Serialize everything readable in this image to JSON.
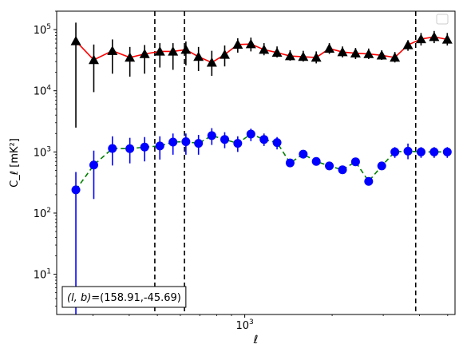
{
  "chart_data": {
    "type": "scatter",
    "title": "",
    "xlabel": "ℓ",
    "ylabel": "C_ℓ  [mK²]",
    "xscale": "log",
    "yscale": "log",
    "xlim": [
      225,
      5300
    ],
    "ylim": [
      2.2,
      200000
    ],
    "grid": false,
    "legend": {
      "placement": "top-right",
      "entries": []
    },
    "annotation": {
      "prefix": "(l, b)",
      "text": "=(158.91,-45.69)"
    },
    "x_ticks": [
      {
        "value": 1000,
        "base": "10",
        "exp": "3"
      }
    ],
    "y_ticks": [
      {
        "value": 10,
        "base": "10",
        "exp": "1"
      },
      {
        "value": 100,
        "base": "10",
        "exp": "2"
      },
      {
        "value": 1000,
        "base": "10",
        "exp": "3"
      },
      {
        "value": 10000,
        "base": "10",
        "exp": "4"
      },
      {
        "value": 100000,
        "base": "10",
        "exp": "5"
      }
    ],
    "vlines": [
      490,
      620,
      3880
    ],
    "series": [
      {
        "color": "#000000",
        "line_color": "#ff0000",
        "line_style": "solid",
        "marker": "triangle",
        "x": [
          262,
          302,
          350,
          402,
          452,
          510,
          566,
          627,
          693,
          770,
          853,
          946,
          1050,
          1165,
          1292,
          1433,
          1590,
          1763,
          1956,
          2171,
          2408,
          2672,
          2964,
          3289,
          3649,
          4048,
          4492,
          4984
        ],
        "y": [
          65000,
          32000,
          45000,
          35000,
          40000,
          44000,
          44000,
          47000,
          36000,
          29000,
          39000,
          57000,
          58000,
          47000,
          42000,
          37000,
          36000,
          35000,
          49000,
          43000,
          41000,
          40000,
          38000,
          35000,
          56000,
          70000,
          76000,
          69000
        ],
        "yerr_low": [
          2500,
          9500,
          19000,
          17000,
          19000,
          24000,
          22000,
          26000,
          21000,
          17500,
          25000,
          42000,
          44000,
          38000,
          35000,
          31000,
          30000,
          28000,
          40000,
          35000,
          33000,
          33000,
          32000,
          29000,
          45000,
          55000,
          60000,
          55000
        ],
        "yerr_high": [
          130000,
          57000,
          69000,
          52000,
          56000,
          60000,
          60000,
          64000,
          52000,
          45000,
          55000,
          72000,
          74000,
          60000,
          53000,
          46000,
          45000,
          44000,
          60000,
          53000,
          50000,
          49000,
          46000,
          43000,
          67000,
          88000,
          95000,
          88000
        ]
      },
      {
        "color": "#0000ff",
        "line_color": "#008000",
        "line_style": "dashed",
        "marker": "circle",
        "x": [
          262,
          302,
          350,
          402,
          452,
          510,
          566,
          627,
          693,
          770,
          853,
          946,
          1050,
          1165,
          1292,
          1433,
          1590,
          1763,
          1956,
          2171,
          2408,
          2672,
          2964,
          3289,
          3649,
          4048,
          4492,
          4984
        ],
        "y": [
          240,
          610,
          1140,
          1130,
          1200,
          1250,
          1450,
          1470,
          1380,
          1850,
          1600,
          1380,
          1960,
          1600,
          1420,
          660,
          920,
          700,
          590,
          510,
          690,
          330,
          590,
          1000,
          1030,
          1000,
          1000,
          1000
        ],
        "yerr_low": [
          2,
          170,
          600,
          650,
          700,
          750,
          900,
          900,
          900,
          1300,
          1150,
          1000,
          1500,
          1250,
          1100,
          600,
          840,
          620,
          560,
          470,
          640,
          310,
          550,
          800,
          760,
          800,
          800,
          800
        ],
        "yerr_high": [
          470,
          1050,
          1800,
          1700,
          1750,
          1800,
          2000,
          2000,
          1900,
          2450,
          2100,
          1800,
          2400,
          2000,
          1750,
          740,
          1000,
          780,
          640,
          560,
          760,
          360,
          650,
          1200,
          1370,
          1200,
          1200,
          1200
        ]
      }
    ]
  }
}
